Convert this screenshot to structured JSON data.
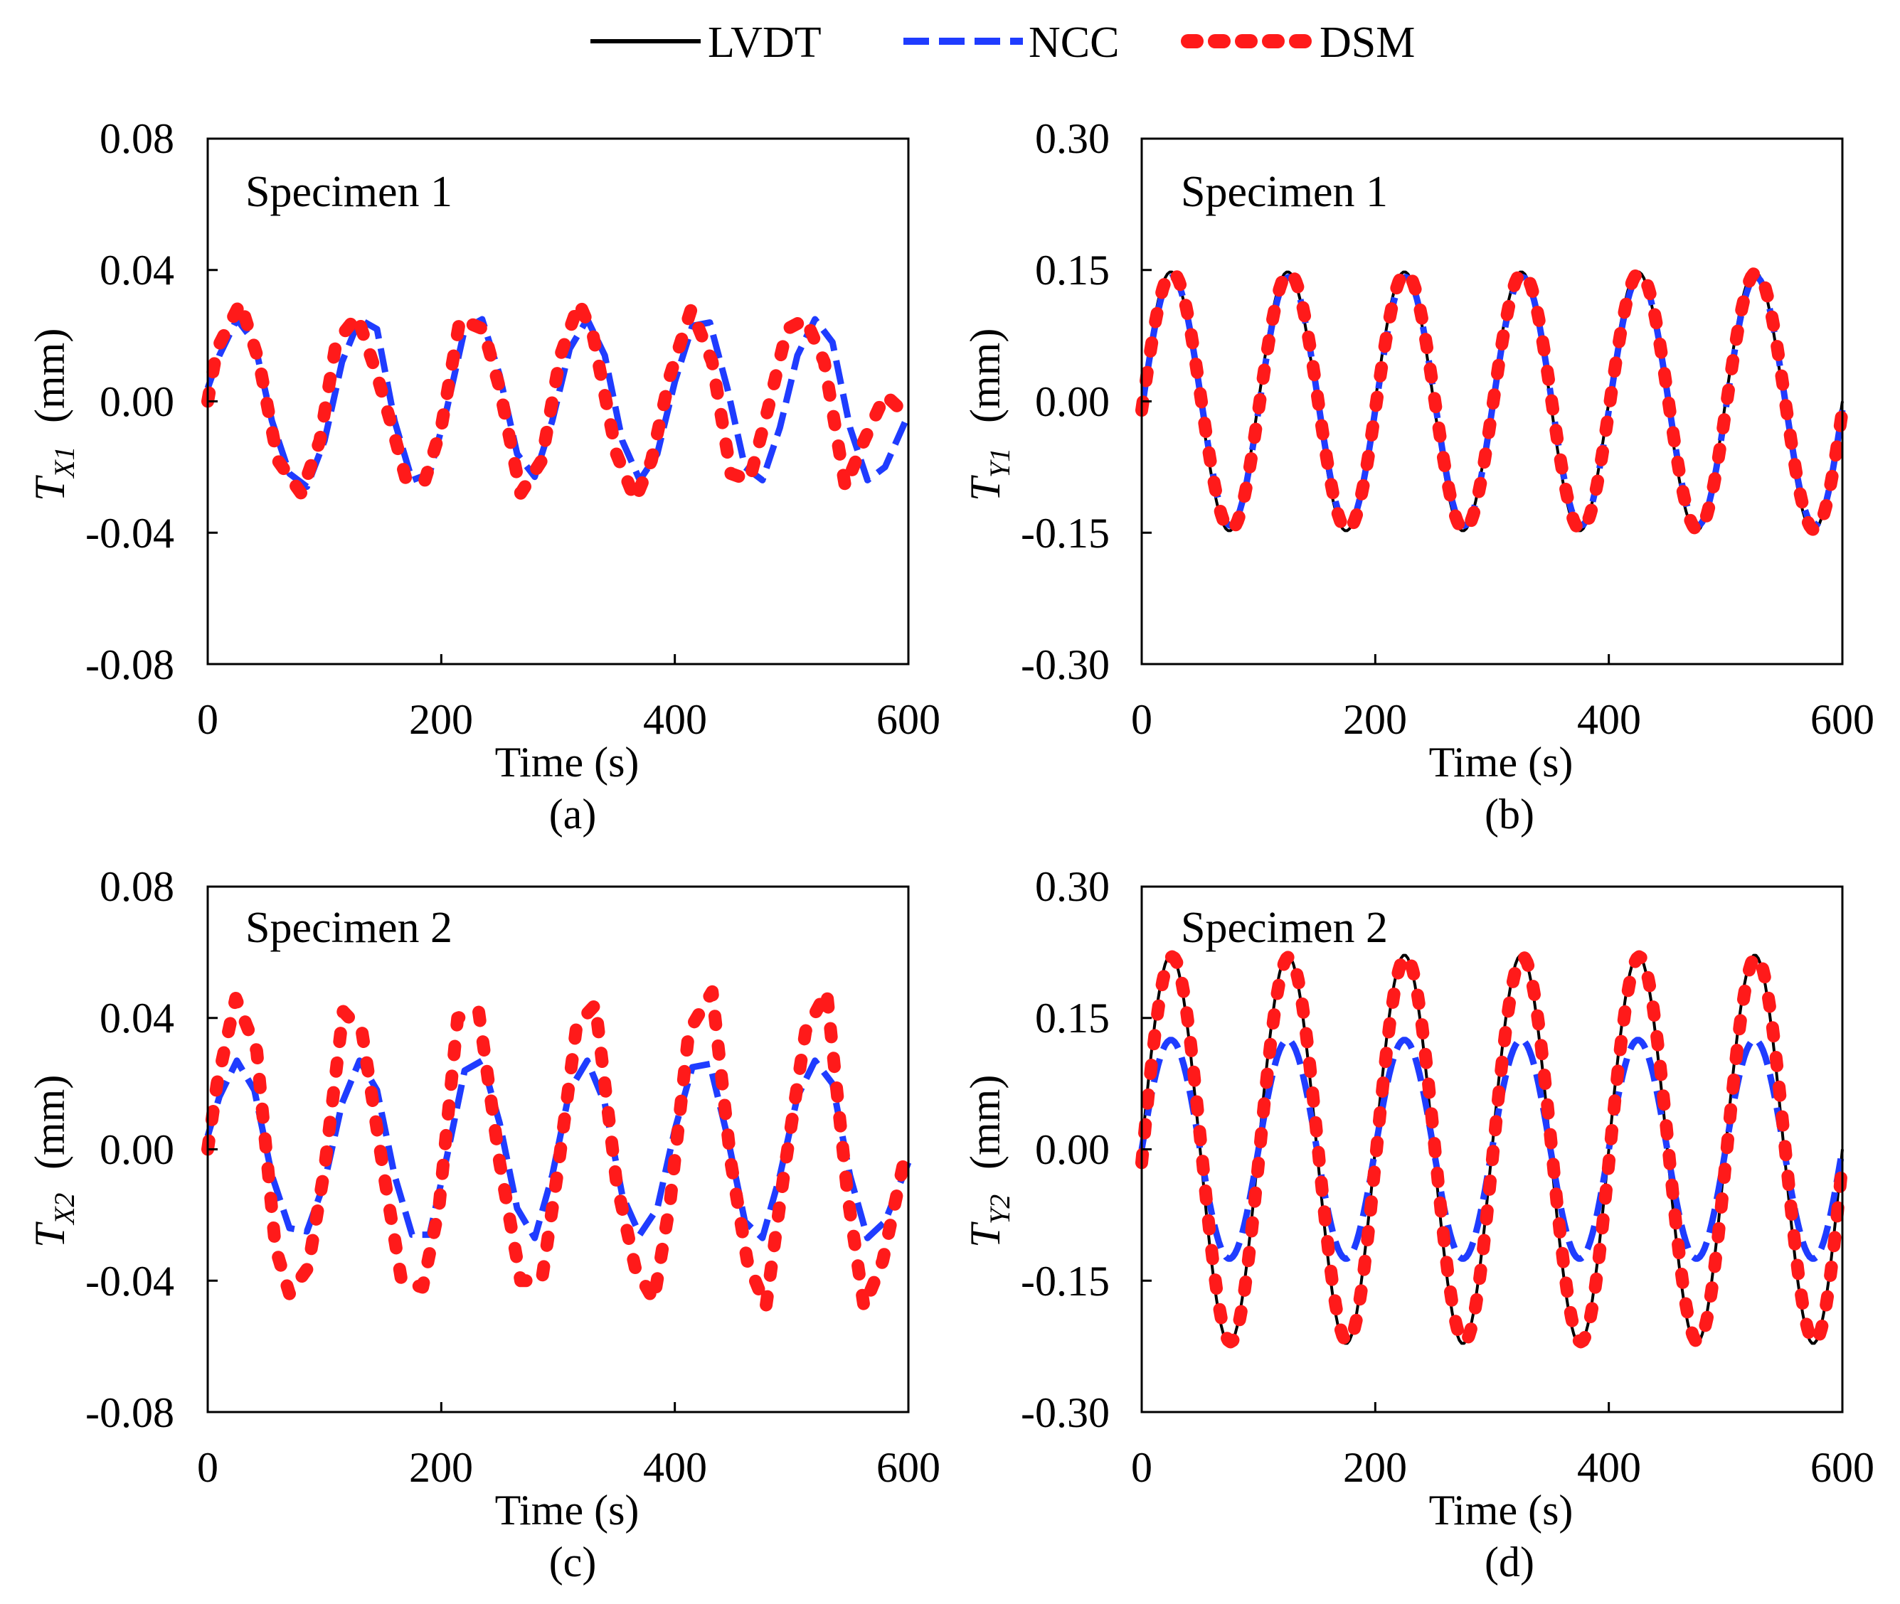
{
  "legend": [
    {
      "label": "LVDT",
      "color": "#000000",
      "style": "solid"
    },
    {
      "label": "NCC",
      "color": "#1f3cff",
      "style": "dashed"
    },
    {
      "label": "DSM",
      "color": "#ff1a1a",
      "style": "dotted"
    }
  ],
  "chart_data": [
    {
      "type": "line",
      "panel_label": "(a)",
      "specimen_label": "Specimen 1",
      "ylabel_main": "T",
      "ylabel_sub": "X1",
      "ylabel_unit": "(mm)",
      "xlabel": "Time (s)",
      "xlim": [
        0,
        600
      ],
      "ylim": [
        -0.08,
        0.08
      ],
      "xticks": [
        "0",
        "200",
        "400",
        "600"
      ],
      "yticks": [
        "0.08",
        "0.04",
        "0.00",
        "-0.04",
        "-0.08"
      ],
      "series": [
        {
          "name": "NCC",
          "x": [
            0,
            10,
            25,
            40,
            55,
            70,
            85,
            100,
            115,
            130,
            145,
            160,
            175,
            190,
            205,
            220,
            235,
            250,
            265,
            280,
            295,
            310,
            325,
            340,
            355,
            370,
            385,
            400,
            415,
            430,
            445,
            460,
            475,
            490,
            505,
            520,
            535,
            550,
            565,
            580,
            600
          ],
          "y": [
            0.004,
            0.014,
            0.025,
            0.018,
            -0.006,
            -0.022,
            -0.026,
            -0.012,
            0.012,
            0.025,
            0.022,
            -0.006,
            -0.024,
            -0.022,
            -0.002,
            0.022,
            0.025,
            0.008,
            -0.016,
            -0.023,
            -0.006,
            0.016,
            0.025,
            0.014,
            -0.012,
            -0.024,
            -0.016,
            0.006,
            0.023,
            0.024,
            0.004,
            -0.02,
            -0.024,
            -0.008,
            0.014,
            0.025,
            0.018,
            -0.008,
            -0.024,
            -0.02,
            -0.004
          ]
        },
        {
          "name": "DSM",
          "x": [
            0,
            8,
            28,
            44,
            60,
            80,
            96,
            110,
            128,
            145,
            158,
            170,
            186,
            200,
            216,
            236,
            250,
            268,
            286,
            302,
            318,
            330,
            350,
            366,
            380,
            396,
            414,
            432,
            448,
            464,
            480,
            496,
            512,
            528,
            546,
            562,
            580,
            598
          ],
          "y": [
            0.0,
            0.016,
            0.03,
            0.012,
            -0.018,
            -0.028,
            -0.012,
            0.018,
            0.026,
            0.008,
            -0.008,
            -0.024,
            -0.024,
            -0.008,
            0.025,
            0.022,
            0.004,
            -0.028,
            -0.018,
            0.014,
            0.03,
            0.02,
            -0.016,
            -0.03,
            -0.018,
            0.008,
            0.028,
            0.012,
            -0.022,
            -0.024,
            -0.002,
            0.022,
            0.025,
            0.012,
            -0.026,
            -0.012,
            0.002,
            -0.004
          ]
        }
      ]
    },
    {
      "type": "line",
      "panel_label": "(b)",
      "specimen_label": "Specimen 1",
      "ylabel_main": "T",
      "ylabel_sub": "Y1",
      "ylabel_unit": "(mm)",
      "xlabel": "Time (s)",
      "xlim": [
        0,
        600
      ],
      "ylim": [
        -0.3,
        0.3
      ],
      "xticks": [
        "0",
        "200",
        "400",
        "600"
      ],
      "yticks": [
        "0.30",
        "0.15",
        "0.00",
        "-0.15",
        "-0.30"
      ],
      "series": [
        {
          "name": "LVDT",
          "amplitude": 0.148,
          "period": 100,
          "phase_deg": 0
        },
        {
          "name": "NCC",
          "amplitude": 0.142,
          "period": 100,
          "phase_deg": -4
        },
        {
          "name": "DSM",
          "amplitude": 0.147,
          "period": 100,
          "phase_deg": -4
        }
      ]
    },
    {
      "type": "line",
      "panel_label": "(c)",
      "specimen_label": "Specimen 2",
      "ylabel_main": "T",
      "ylabel_sub": "X2",
      "ylabel_unit": "(mm)",
      "xlabel": "Time (s)",
      "xlim": [
        0,
        600
      ],
      "ylim": [
        -0.08,
        0.08
      ],
      "xticks": [
        "0",
        "200",
        "400",
        "600"
      ],
      "yticks": [
        "0.08",
        "0.04",
        "0.00",
        "-0.04",
        "-0.08"
      ],
      "series": [
        {
          "name": "NCC",
          "x": [
            0,
            10,
            25,
            40,
            55,
            70,
            85,
            100,
            115,
            130,
            145,
            160,
            175,
            190,
            205,
            220,
            235,
            250,
            265,
            280,
            295,
            310,
            325,
            340,
            355,
            370,
            385,
            400,
            415,
            430,
            445,
            460,
            475,
            490,
            505,
            520,
            535,
            550,
            565,
            580,
            600
          ],
          "y": [
            0.004,
            0.016,
            0.027,
            0.018,
            -0.008,
            -0.024,
            -0.025,
            -0.01,
            0.014,
            0.027,
            0.018,
            -0.008,
            -0.026,
            -0.026,
            -0.002,
            0.024,
            0.027,
            0.008,
            -0.018,
            -0.027,
            -0.008,
            0.018,
            0.027,
            0.014,
            -0.014,
            -0.026,
            -0.018,
            0.006,
            0.025,
            0.026,
            0.004,
            -0.022,
            -0.027,
            -0.008,
            0.016,
            0.027,
            0.02,
            -0.008,
            -0.027,
            -0.022,
            -0.004
          ]
        },
        {
          "name": "DSM",
          "x": [
            0,
            8,
            24,
            42,
            58,
            70,
            86,
            100,
            116,
            132,
            152,
            166,
            184,
            198,
            214,
            232,
            250,
            268,
            286,
            300,
            316,
            332,
            350,
            366,
            382,
            396,
            412,
            432,
            448,
            462,
            478,
            494,
            512,
            530,
            548,
            562,
            578,
            596
          ],
          "y": [
            0.0,
            0.02,
            0.046,
            0.03,
            -0.03,
            -0.044,
            -0.036,
            -0.006,
            0.042,
            0.036,
            -0.01,
            -0.04,
            -0.042,
            -0.018,
            0.04,
            0.042,
            -0.004,
            -0.04,
            -0.04,
            -0.006,
            0.038,
            0.044,
            -0.01,
            -0.036,
            -0.046,
            -0.016,
            0.036,
            0.048,
            -0.004,
            -0.034,
            -0.048,
            -0.006,
            0.036,
            0.048,
            -0.014,
            -0.048,
            -0.034,
            -0.004
          ]
        }
      ]
    },
    {
      "type": "line",
      "panel_label": "(d)",
      "specimen_label": "Specimen 2",
      "ylabel_main": "T",
      "ylabel_sub": "Y2",
      "ylabel_unit": "(mm)",
      "xlabel": "Time (s)",
      "xlim": [
        0,
        600
      ],
      "ylim": [
        -0.3,
        0.3
      ],
      "xticks": [
        "0",
        "200",
        "400",
        "600"
      ],
      "yticks": [
        "0.30",
        "0.15",
        "0.00",
        "-0.15",
        "-0.30"
      ],
      "series": [
        {
          "name": "LVDT",
          "amplitude": 0.222,
          "period": 100,
          "phase_deg": 0
        },
        {
          "name": "NCC",
          "amplitude": 0.125,
          "period": 100,
          "phase_deg": 0
        },
        {
          "name": "DSM",
          "amplitude": 0.22,
          "period": 100,
          "phase_deg": -4
        }
      ]
    }
  ]
}
